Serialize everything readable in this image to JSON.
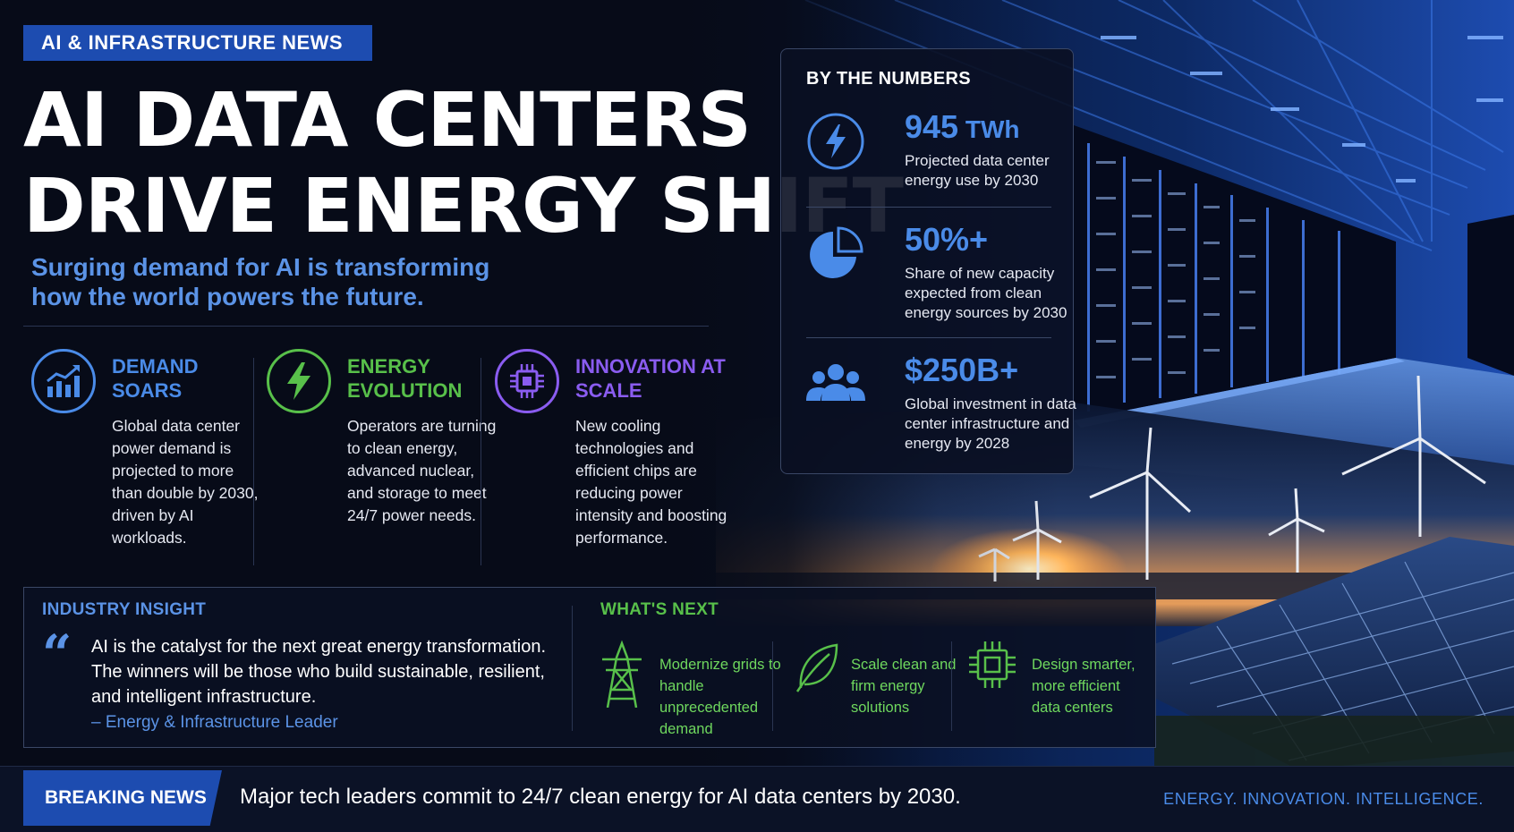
{
  "kicker": "AI & INFRASTRUCTURE NEWS",
  "headline": {
    "line1": "AI DATA CENTERS",
    "line2": "DRIVE ENERGY SHIFT"
  },
  "subhead": "Surging demand for AI is transforming how the world powers the future.",
  "pillars": [
    {
      "title": "DEMAND SOARS",
      "text": "Global data center power demand is projected to more than double by 2030, driven by AI workloads.",
      "color": "#4a8be8",
      "icon": "rising-chart-icon"
    },
    {
      "title": "ENERGY EVOLUTION",
      "text": "Operators are turning to clean energy, advanced nuclear, and storage to meet 24/7 power needs.",
      "color": "#58c04a",
      "icon": "lightning-bolt-icon"
    },
    {
      "title": "INNOVATION AT SCALE",
      "text": "New cooling technologies and efficient chips are reducing power intensity and boosting performance.",
      "color": "#8a5cf0",
      "icon": "chip-icon"
    }
  ],
  "numbers": {
    "title": "BY THE NUMBERS",
    "stats": [
      {
        "value": "945",
        "unit": " TWh",
        "text": "Projected data center energy use by 2030",
        "icon": "lightning-bolt-icon"
      },
      {
        "value": "50%+",
        "unit": "",
        "text": "Share of new capacity expected from clean energy sources by 2030",
        "icon": "pie-chart-icon"
      },
      {
        "value": "$250B+",
        "unit": "",
        "text": "Global investment in data center infrastructure and energy by 2028",
        "icon": "people-group-icon"
      }
    ]
  },
  "insight": {
    "label": "INDUSTRY INSIGHT",
    "quote": "AI is the catalyst for the next great energy transformation. The winners will be those who build sustainable, resilient, and intelligent infrastructure.",
    "source": "– Energy & Infrastructure Leader"
  },
  "next": {
    "label": "WHAT'S NEXT",
    "items": [
      {
        "text": "Modernize grids to handle unprecedented demand",
        "icon": "power-tower-icon"
      },
      {
        "text": "Scale clean and firm energy solutions",
        "icon": "leaf-icon"
      },
      {
        "text": "Design smarter, more efficient data centers",
        "icon": "chip-icon"
      }
    ]
  },
  "ticker": {
    "tag": "BREAKING NEWS",
    "headline": "Major tech leaders commit to 24/7 clean energy for AI data centers by 2030.",
    "tagline": "ENERGY. INNOVATION. INTELLIGENCE."
  },
  "colors": {
    "blue": "#4a8be8",
    "green": "#58c04a",
    "purple": "#8a5cf0",
    "brand": "#1d4cb0",
    "background": "#070b18"
  }
}
